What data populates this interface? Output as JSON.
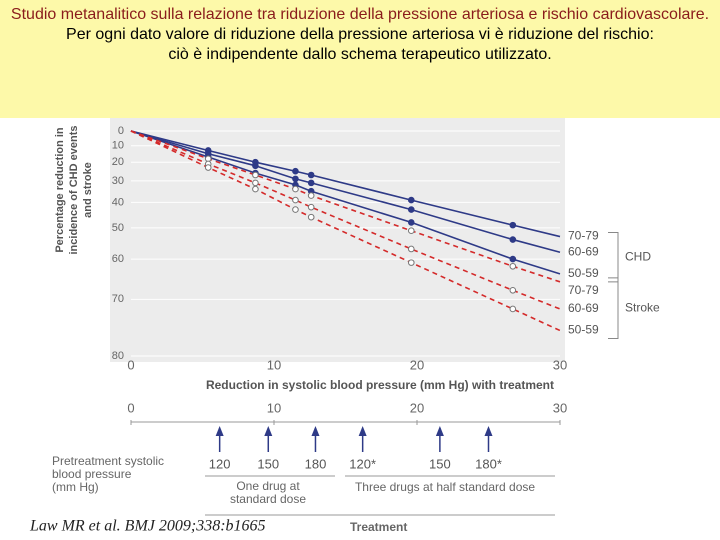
{
  "chart_data": {
    "type": "line",
    "title": "Studio metanalitico sulla relazione tra riduzione della pressione arteriosa e rischio cardiovascolare.",
    "subtitle": [
      "Per ogni dato valore di riduzione della pressione arteriosa vi è riduzione del rischio:",
      "ciò è indipendente dallo schema terapeutico utilizzato."
    ],
    "xlabel": "Reduction in systolic blood pressure (mm Hg) with treatment",
    "ylabel": [
      "Percentage reduction in",
      "incidence of CHD events",
      "and stroke"
    ],
    "x": [
      0,
      5.4,
      8.7,
      11.5,
      12.6,
      19.6,
      26.7,
      30
    ],
    "xlim": [
      0,
      30
    ],
    "xticks": [
      0,
      10,
      20,
      30
    ],
    "ylim": [
      0,
      80
    ],
    "yticks": [
      0,
      10,
      20,
      30,
      40,
      50,
      60,
      70,
      80
    ],
    "yscale": "log",
    "yinverted": true,
    "series": [
      {
        "name": "70-79",
        "group": "CHD",
        "color": "#2e3a87",
        "linestyle": "solid",
        "marker": "filled",
        "values": [
          0,
          13,
          20,
          25,
          27,
          39,
          49,
          53
        ]
      },
      {
        "name": "60-69",
        "group": "CHD",
        "color": "#2e3a87",
        "linestyle": "solid",
        "marker": "filled",
        "values": [
          0,
          15,
          22,
          29,
          31,
          43,
          54,
          58
        ]
      },
      {
        "name": "50-59",
        "group": "CHD",
        "color": "#2e3a87",
        "linestyle": "solid",
        "marker": "filled",
        "values": [
          0,
          17,
          26,
          32,
          35,
          48,
          60,
          64
        ]
      },
      {
        "name": "70-79",
        "group": "Stroke",
        "color": "#d42a2a",
        "linestyle": "dashed",
        "marker": "open",
        "values": [
          0,
          18,
          27,
          34,
          37,
          51,
          62,
          66
        ]
      },
      {
        "name": "60-69",
        "group": "Stroke",
        "color": "#d42a2a",
        "linestyle": "dashed",
        "marker": "open",
        "values": [
          0,
          21,
          31,
          39,
          42,
          57,
          68,
          72
        ]
      },
      {
        "name": "50-59",
        "group": "Stroke",
        "color": "#d42a2a",
        "linestyle": "dashed",
        "marker": "open",
        "values": [
          0,
          23,
          34,
          43,
          46,
          61,
          72,
          76
        ]
      }
    ],
    "pretreatment": {
      "title": [
        "Pretreatment systolic",
        "blood pressure",
        "(mm Hg)"
      ],
      "items": [
        {
          "x": 6.2,
          "label": "120"
        },
        {
          "x": 9.6,
          "label": "150"
        },
        {
          "x": 12.9,
          "label": "180"
        },
        {
          "x": 16.2,
          "label": "120*"
        },
        {
          "x": 21.6,
          "label": "150"
        },
        {
          "x": 25.0,
          "label": "180*"
        }
      ],
      "groups": [
        [
          "One drug at",
          "standard dose"
        ],
        [
          "Three drugs at half standard dose"
        ]
      ],
      "footer": "Treatment"
    },
    "citation": "Law MR et al. BMJ 2009;338:b1665"
  }
}
